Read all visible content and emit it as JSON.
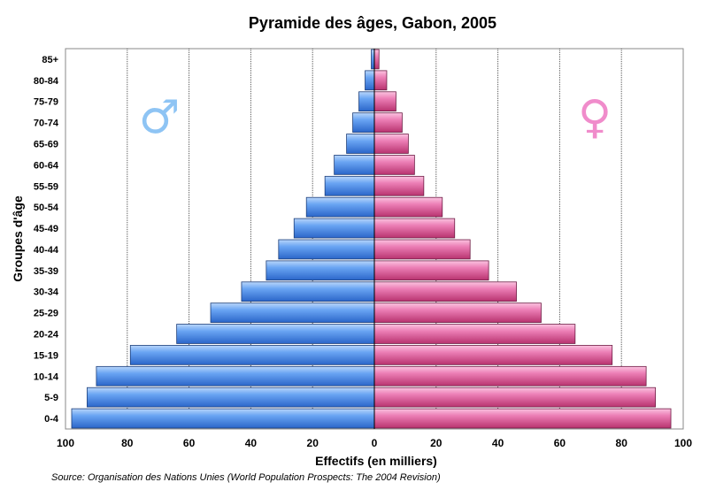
{
  "chart_data": {
    "type": "bar",
    "title": "Pyramide des âges, Gabon, 2005",
    "xlabel": "Effectifs (en milliers)",
    "ylabel": "Groupes d'âge",
    "xlim": [
      -100,
      100
    ],
    "xticks": [
      100,
      80,
      60,
      40,
      20,
      0,
      20,
      40,
      60,
      80,
      100
    ],
    "grid": true,
    "categories": [
      "0-4",
      "5-9",
      "10-14",
      "15-19",
      "20-24",
      "25-29",
      "30-34",
      "35-39",
      "40-44",
      "45-49",
      "50-54",
      "55-59",
      "60-64",
      "65-69",
      "70-74",
      "75-79",
      "80-84",
      "85+"
    ],
    "series": [
      {
        "values": [
          98,
          93,
          90,
          79,
          64,
          53,
          43,
          35,
          31,
          26,
          22,
          16,
          13,
          9,
          7,
          5,
          3,
          1
        ]
      },
      {
        "values": [
          96,
          91,
          88,
          77,
          65,
          54,
          46,
          37,
          31,
          26,
          22,
          16,
          13,
          11,
          9,
          7,
          4,
          1.5
        ]
      }
    ],
    "colors": {
      "male": "#5b9bf0",
      "female": "#e874ad",
      "male_symbol": "#8ec4f4",
      "female_symbol": "#f08ccb"
    },
    "symbols": {
      "male": "♂",
      "female": "♀"
    }
  },
  "source": "Source: Organisation des Nations Unies (World Population Prospects: The 2004 Revision)"
}
